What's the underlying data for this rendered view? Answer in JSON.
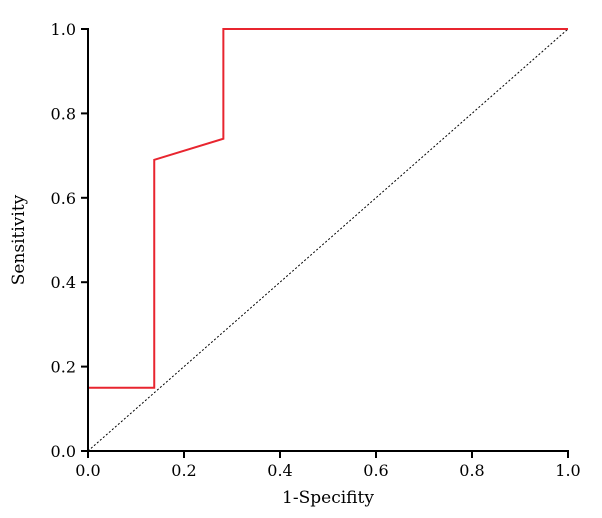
{
  "chart_data": {
    "type": "line",
    "title": "",
    "xlabel": "1-Specifity",
    "ylabel": "Sensitivity",
    "xlim": [
      0,
      1
    ],
    "ylim": [
      0,
      1
    ],
    "xticks": [
      "0.0",
      "0.2",
      "0.4",
      "0.6",
      "0.8",
      "1.0"
    ],
    "yticks": [
      "0.0",
      "0.2",
      "0.4",
      "0.6",
      "0.8",
      "1.0"
    ],
    "grid": false,
    "legend": "none",
    "series": [
      {
        "color": "#e8252f",
        "style": "solid",
        "x": [
          0,
          0,
          0.138,
          0.138,
          0.282,
          0.282,
          1.0
        ],
        "y": [
          0,
          0.15,
          0.15,
          0.69,
          0.74,
          1.0,
          1.0
        ]
      },
      {
        "color": "#000000",
        "style": "dotted",
        "x": [
          0,
          1
        ],
        "y": [
          0,
          1
        ]
      }
    ]
  }
}
